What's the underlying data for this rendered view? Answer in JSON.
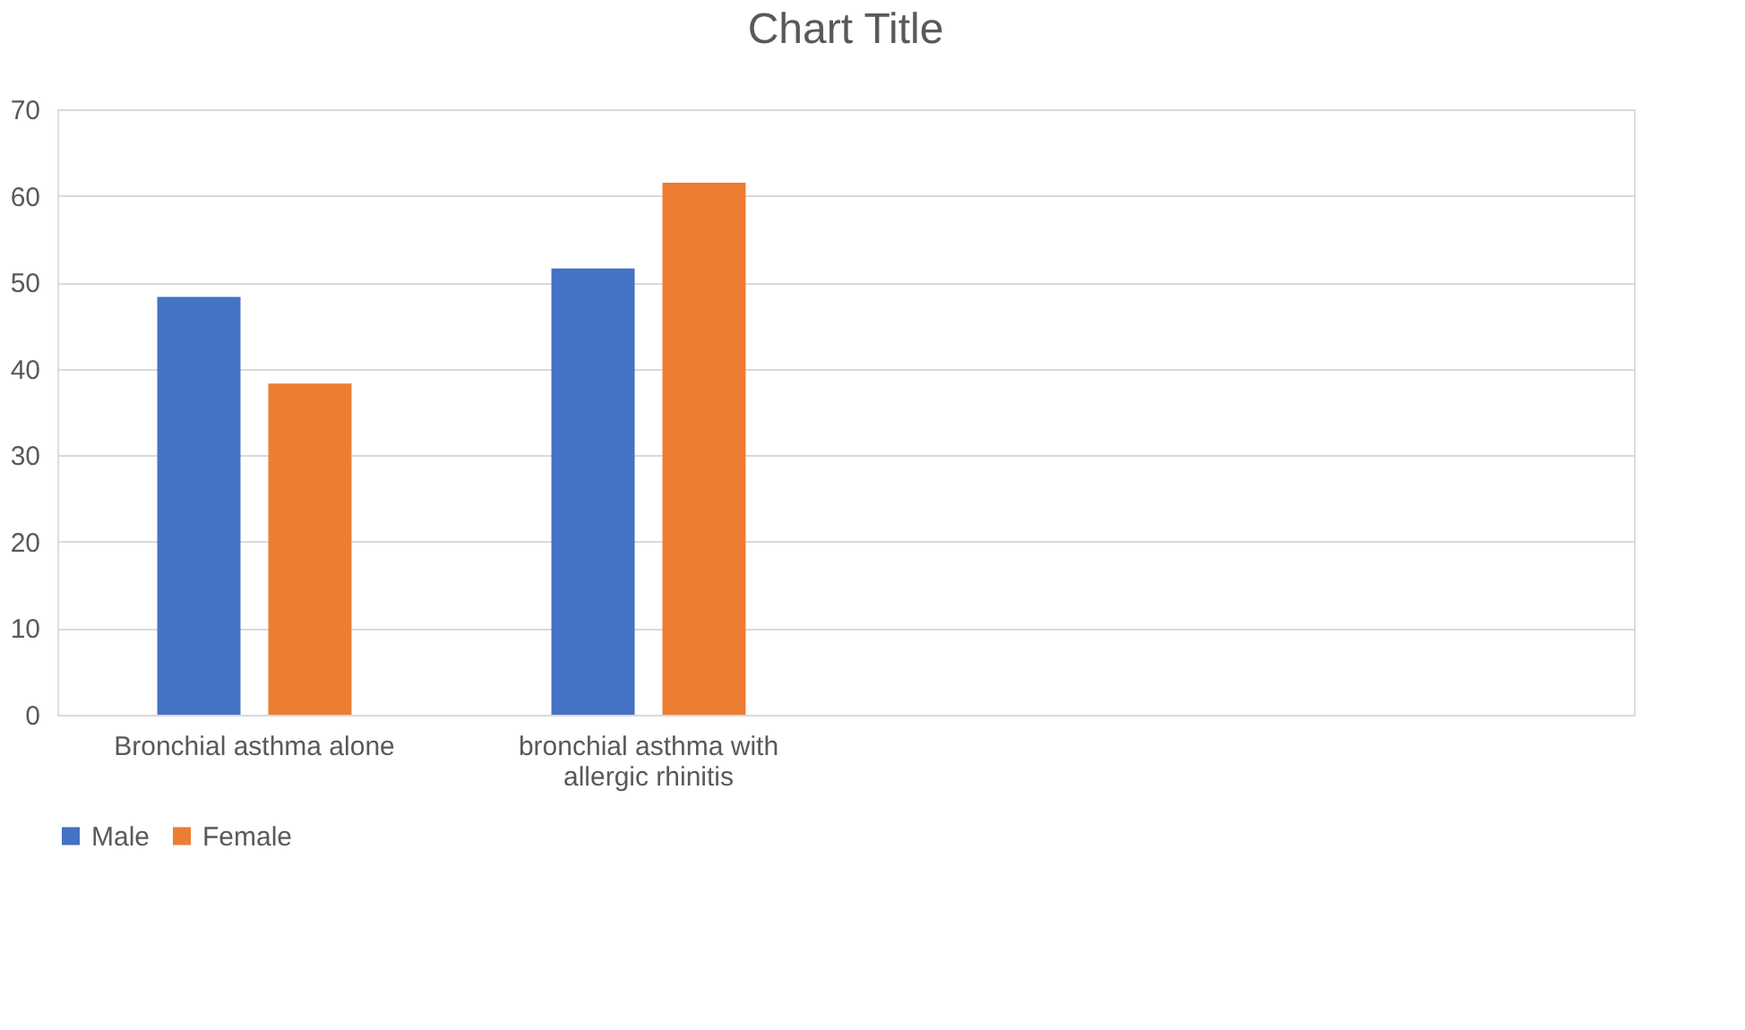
{
  "chart_data": {
    "type": "bar",
    "title": "Chart Title",
    "categories": [
      "Bronchial asthma alone",
      "bronchial  asthma with allergic rhinitis",
      null,
      null
    ],
    "series": [
      {
        "name": "Male",
        "color": "#4472c4",
        "values": [
          48.3,
          51.6,
          null,
          null
        ]
      },
      {
        "name": "Female",
        "color": "#ed7d31",
        "values": [
          38.3,
          61.5,
          null,
          null
        ]
      }
    ],
    "ylim": [
      0,
      70
    ],
    "yticks": [
      0,
      10,
      20,
      30,
      40,
      50,
      60,
      70
    ],
    "grid": "y",
    "legend": "bottom"
  }
}
